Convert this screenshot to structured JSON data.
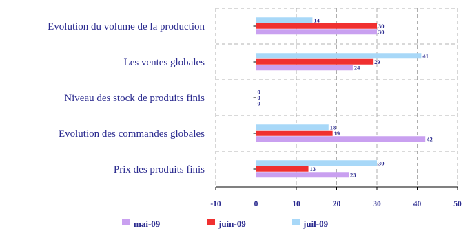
{
  "chart_data": {
    "type": "bar",
    "orientation": "horizontal",
    "title": "",
    "xlabel": "",
    "ylabel": "",
    "categories": [
      "Evolution du volume de la production",
      "Les ventes globales",
      "Niveau des stock de produits finis",
      "Evolution des commandes globales",
      "Prix des produits finis"
    ],
    "series": [
      {
        "name": "mai-09",
        "color": "#c9a0f0",
        "values": [
          30,
          24,
          0,
          42,
          23
        ]
      },
      {
        "name": "juin-09",
        "color": "#f03030",
        "values": [
          30,
          29,
          0,
          19,
          13
        ]
      },
      {
        "name": "juil-09",
        "color": "#a8d8f8",
        "values": [
          14,
          41,
          0,
          18,
          30
        ]
      }
    ],
    "xlim": [
      -10,
      50
    ],
    "xticks": [
      "-10",
      "0",
      "10",
      "20",
      "30",
      "40",
      "50"
    ],
    "grid": true,
    "legend": "bottom"
  }
}
